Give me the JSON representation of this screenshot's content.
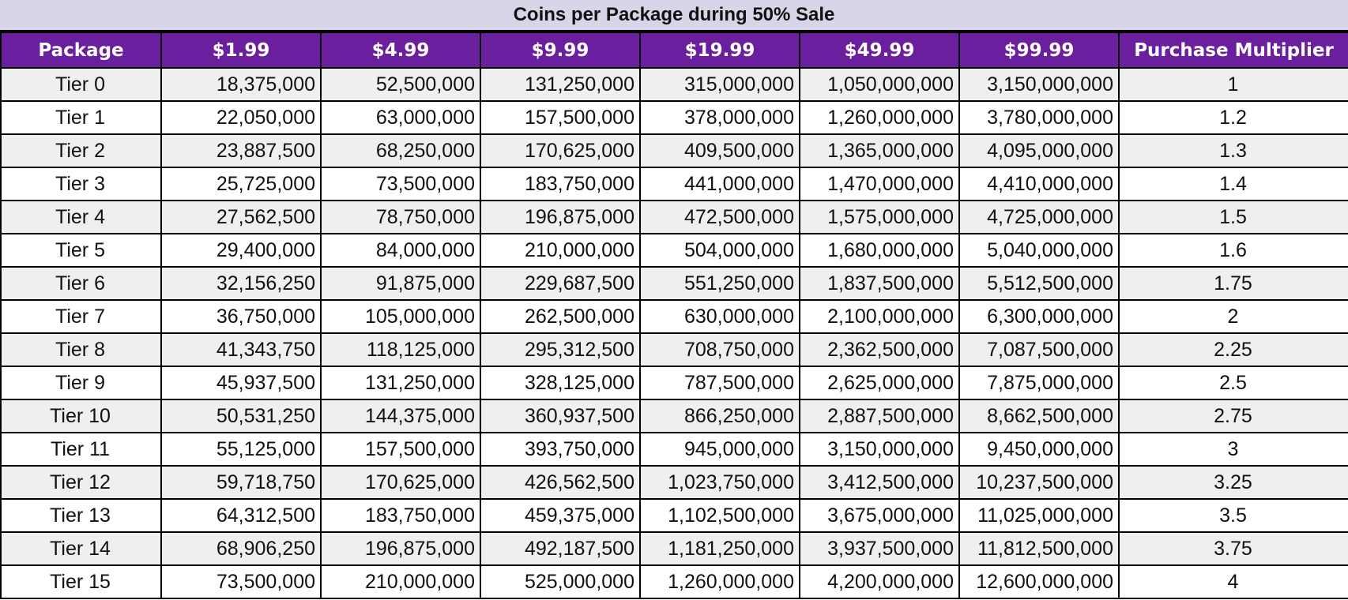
{
  "title": "Coins per Package during 50% Sale",
  "chart_data": {
    "type": "table",
    "title": "Coins per Package during 50% Sale",
    "columns": [
      "Package",
      "$1.99",
      "$4.99",
      "$9.99",
      "$19.99",
      "$49.99",
      "$99.99",
      "Purchase Multiplier"
    ],
    "rows": [
      [
        "Tier 0",
        "18,375,000",
        "52,500,000",
        "131,250,000",
        "315,000,000",
        "1,050,000,000",
        "3,150,000,000",
        "1"
      ],
      [
        "Tier 1",
        "22,050,000",
        "63,000,000",
        "157,500,000",
        "378,000,000",
        "1,260,000,000",
        "3,780,000,000",
        "1.2"
      ],
      [
        "Tier 2",
        "23,887,500",
        "68,250,000",
        "170,625,000",
        "409,500,000",
        "1,365,000,000",
        "4,095,000,000",
        "1.3"
      ],
      [
        "Tier 3",
        "25,725,000",
        "73,500,000",
        "183,750,000",
        "441,000,000",
        "1,470,000,000",
        "4,410,000,000",
        "1.4"
      ],
      [
        "Tier 4",
        "27,562,500",
        "78,750,000",
        "196,875,000",
        "472,500,000",
        "1,575,000,000",
        "4,725,000,000",
        "1.5"
      ],
      [
        "Tier 5",
        "29,400,000",
        "84,000,000",
        "210,000,000",
        "504,000,000",
        "1,680,000,000",
        "5,040,000,000",
        "1.6"
      ],
      [
        "Tier 6",
        "32,156,250",
        "91,875,000",
        "229,687,500",
        "551,250,000",
        "1,837,500,000",
        "5,512,500,000",
        "1.75"
      ],
      [
        "Tier 7",
        "36,750,000",
        "105,000,000",
        "262,500,000",
        "630,000,000",
        "2,100,000,000",
        "6,300,000,000",
        "2"
      ],
      [
        "Tier 8",
        "41,343,750",
        "118,125,000",
        "295,312,500",
        "708,750,000",
        "2,362,500,000",
        "7,087,500,000",
        "2.25"
      ],
      [
        "Tier 9",
        "45,937,500",
        "131,250,000",
        "328,125,000",
        "787,500,000",
        "2,625,000,000",
        "7,875,000,000",
        "2.5"
      ],
      [
        "Tier 10",
        "50,531,250",
        "144,375,000",
        "360,937,500",
        "866,250,000",
        "2,887,500,000",
        "8,662,500,000",
        "2.75"
      ],
      [
        "Tier 11",
        "55,125,000",
        "157,500,000",
        "393,750,000",
        "945,000,000",
        "3,150,000,000",
        "9,450,000,000",
        "3"
      ],
      [
        "Tier 12",
        "59,718,750",
        "170,625,000",
        "426,562,500",
        "1,023,750,000",
        "3,412,500,000",
        "10,237,500,000",
        "3.25"
      ],
      [
        "Tier 13",
        "64,312,500",
        "183,750,000",
        "459,375,000",
        "1,102,500,000",
        "3,675,000,000",
        "11,025,000,000",
        "3.5"
      ],
      [
        "Tier 14",
        "68,906,250",
        "196,875,000",
        "492,187,500",
        "1,181,250,000",
        "3,937,500,000",
        "11,812,500,000",
        "3.75"
      ],
      [
        "Tier 15",
        "73,500,000",
        "210,000,000",
        "525,000,000",
        "1,260,000,000",
        "4,200,000,000",
        "12,600,000,000",
        "4"
      ]
    ]
  },
  "colors": {
    "header_bg": "#6a1f9f",
    "header_text": "#ffffff",
    "title_bg": "#d9d4e8",
    "row_alt_bg": "#efefef",
    "grid": "#000000"
  }
}
